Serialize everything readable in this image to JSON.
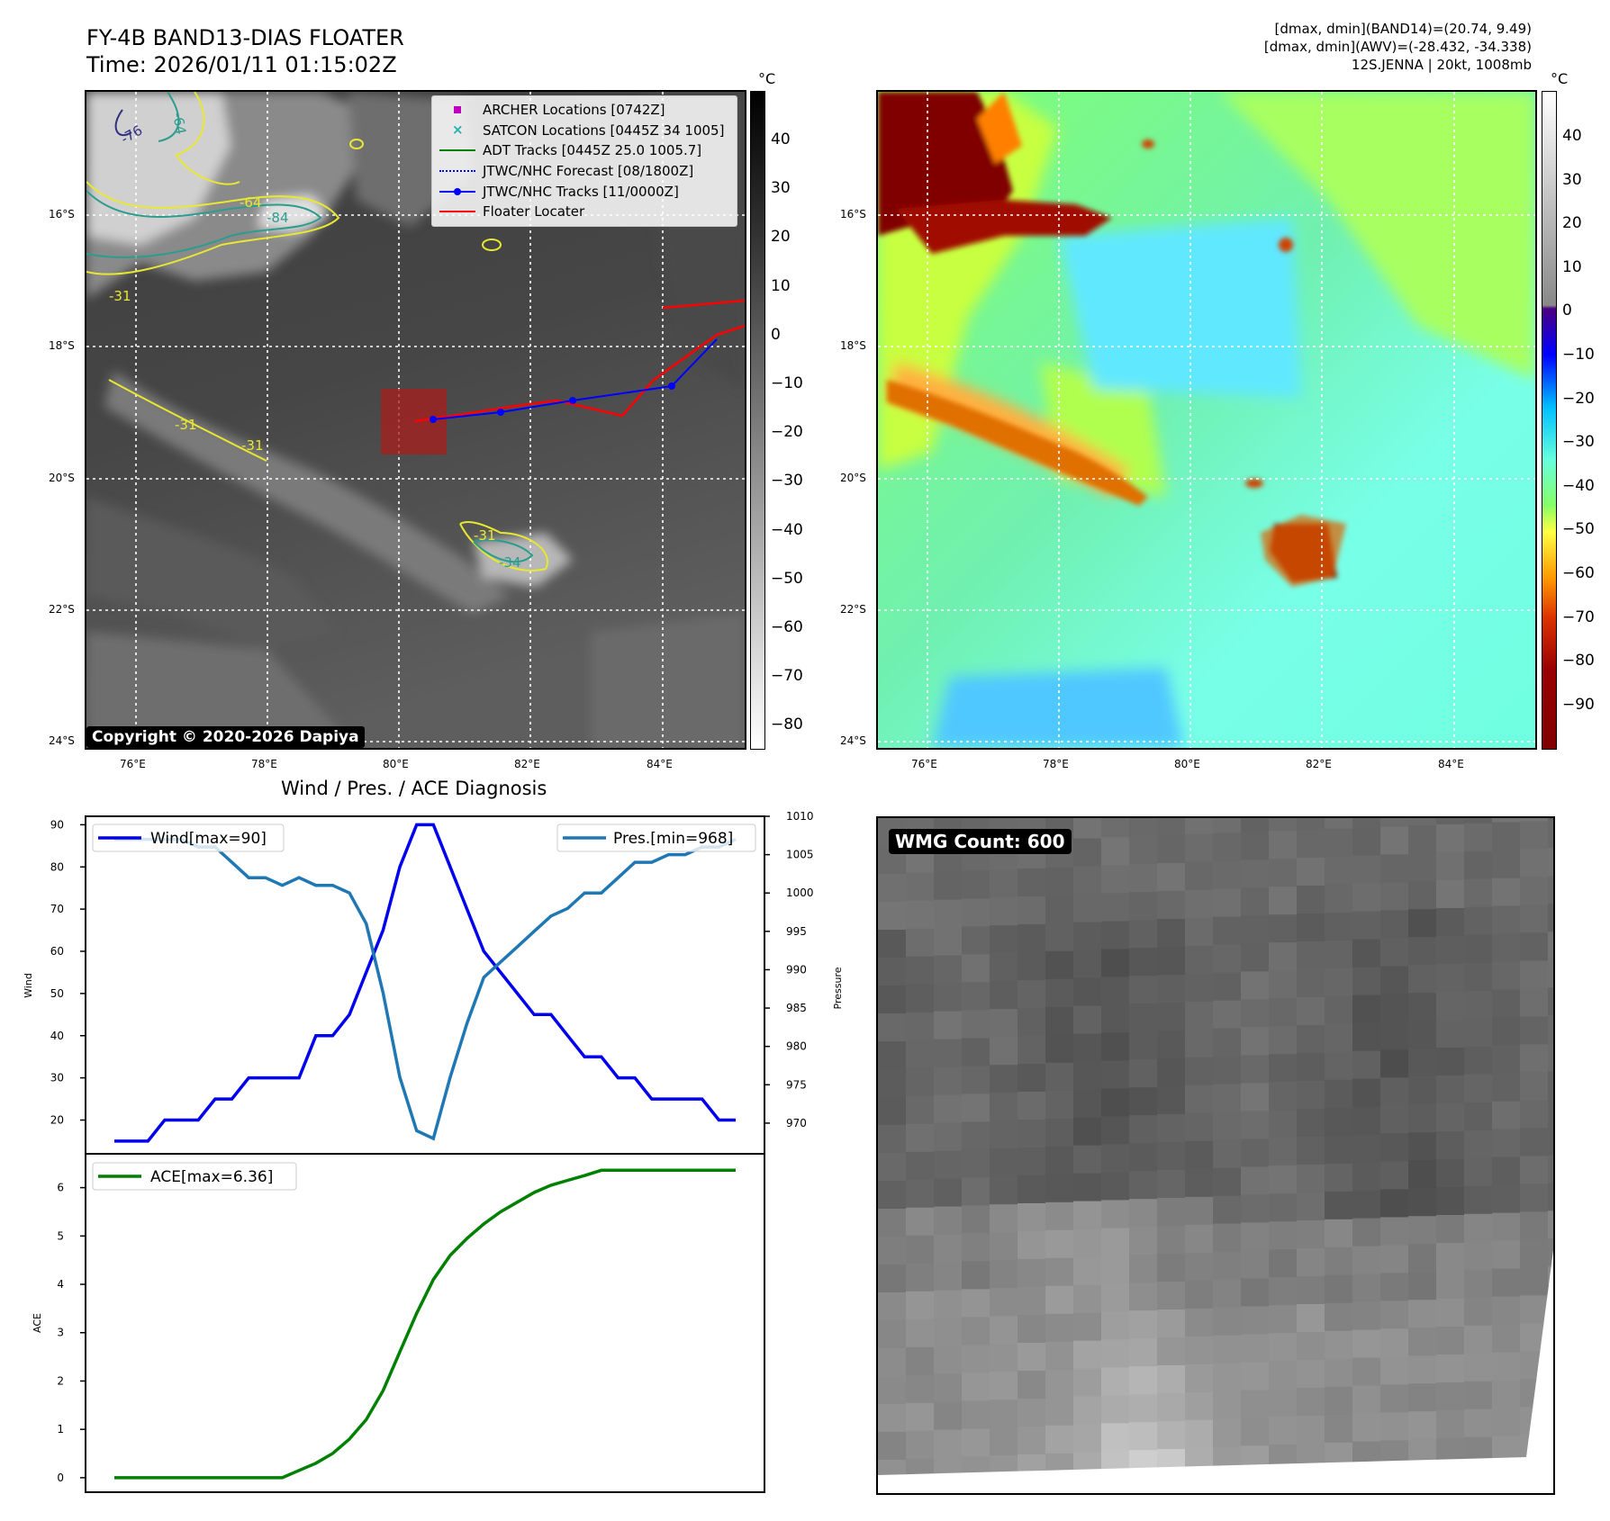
{
  "header": {
    "title_line1": "FY-4B BAND13-DIAS FLOATER",
    "title_line2": "Time: 2026/01/11 01:15:02Z",
    "info_line1": "[dmax, dmin](BAND14)=(20.74, 9.49)",
    "info_line2": "[dmax, dmin](AWV)=(-28.432, -34.338)",
    "info_line3": "12S.JENNA | 20kt, 1008mb"
  },
  "map": {
    "lat_labels": [
      "16°S",
      "18°S",
      "20°S",
      "22°S",
      "24°S"
    ],
    "lon_labels": [
      "76°E",
      "78°E",
      "80°E",
      "82°E",
      "84°E"
    ],
    "contour_labels": [
      "-64",
      "-76",
      "-84",
      "-31",
      "-31",
      "-31",
      "-64",
      "-31",
      "-34"
    ],
    "copyright": "Copyright © 2020-2026 Dapiya",
    "colorbar_unit": "°C",
    "legend": [
      {
        "label": "ARCHER Locations [0742Z]",
        "color": "#c000c0",
        "kind": "square"
      },
      {
        "label": "SATCON Locations [0445Z 34 1005]",
        "color": "#20b0b0",
        "kind": "x"
      },
      {
        "label": "ADT Tracks [0445Z 25.0 1005.7]",
        "color": "#008000",
        "kind": "line"
      },
      {
        "label": "JTWC/NHC Forecast [08/1800Z]",
        "color": "#0000ff",
        "kind": "dotted"
      },
      {
        "label": "JTWC/NHC Tracks [11/0000Z]",
        "color": "#0000ff",
        "kind": "line-dot"
      },
      {
        "label": "Floater Locater",
        "color": "#ff0000",
        "kind": "line"
      }
    ],
    "gray_colorbar_ticks": [
      "40",
      "30",
      "20",
      "10",
      "0",
      "−10",
      "−20",
      "−30",
      "−40",
      "−50",
      "−60",
      "−70",
      "−80"
    ],
    "color_colorbar_ticks": [
      "40",
      "30",
      "20",
      "10",
      "0",
      "−10",
      "−20",
      "−30",
      "−40",
      "−50",
      "−60",
      "−70",
      "−80",
      "−90"
    ]
  },
  "chart_data": [
    {
      "type": "line",
      "title": "Wind / Pres. / ACE Diagnosis",
      "xlabel": "",
      "ylabel": "Wind",
      "ylabel_right": "Pressure",
      "ylim": [
        12,
        92
      ],
      "ylim_right": [
        966,
        1010
      ],
      "yticks": [
        "90",
        "80",
        "70",
        "60",
        "50",
        "40",
        "30",
        "20"
      ],
      "yticks_right": [
        "1010",
        "1005",
        "1000",
        "995",
        "990",
        "985",
        "980",
        "975",
        "970"
      ],
      "series": [
        {
          "name": "Wind[max=90]",
          "color": "#0000ee",
          "values": [
            15,
            15,
            15,
            20,
            20,
            20,
            25,
            25,
            30,
            30,
            30,
            30,
            40,
            40,
            45,
            55,
            65,
            80,
            90,
            90,
            80,
            70,
            60,
            55,
            50,
            45,
            45,
            40,
            35,
            35,
            30,
            30,
            25,
            25,
            25,
            25,
            20,
            20
          ]
        },
        {
          "name": "Pres.[min=968]",
          "color": "#1f77b4",
          "values": [
            1007,
            1007,
            1007,
            1007,
            1007,
            1006,
            1006,
            1004,
            1002,
            1002,
            1001,
            1002,
            1001,
            1001,
            1000,
            996,
            987,
            976,
            969,
            968,
            976,
            983,
            989,
            991,
            993,
            995,
            997,
            998,
            1000,
            1000,
            1002,
            1004,
            1004,
            1005,
            1005,
            1006,
            1006,
            1007
          ]
        }
      ]
    },
    {
      "type": "line",
      "xlabel": "",
      "ylabel": "ACE",
      "ylim": [
        -0.3,
        6.7
      ],
      "yticks": [
        "6",
        "5",
        "4",
        "3",
        "2",
        "1",
        "0"
      ],
      "series": [
        {
          "name": "ACE[max=6.36]",
          "color": "#008000",
          "values": [
            0,
            0,
            0,
            0,
            0,
            0,
            0,
            0,
            0,
            0,
            0,
            0.15,
            0.3,
            0.5,
            0.8,
            1.2,
            1.8,
            2.6,
            3.4,
            4.1,
            4.6,
            4.95,
            5.25,
            5.5,
            5.7,
            5.9,
            6.05,
            6.15,
            6.25,
            6.36,
            6.36,
            6.36,
            6.36,
            6.36,
            6.36,
            6.36,
            6.36,
            6.36
          ]
        }
      ]
    }
  ],
  "wmg": {
    "label": "WMG Count: 600"
  }
}
